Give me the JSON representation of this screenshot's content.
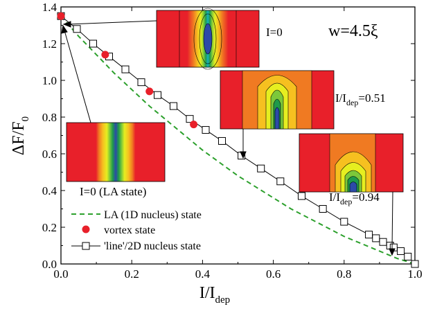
{
  "chart_data": {
    "type": "line",
    "xlabel_main": "I/I",
    "xlabel_sub": "dep",
    "ylabel_main": "ΔF/F",
    "ylabel_sub": "0",
    "xlim": [
      0.0,
      1.0
    ],
    "ylim": [
      0.0,
      1.4
    ],
    "xticks": [
      "0.0",
      "0.2",
      "0.4",
      "0.6",
      "0.8",
      "1.0"
    ],
    "yticks": [
      "0.0",
      "0.2",
      "0.4",
      "0.6",
      "0.8",
      "1.0",
      "1.2",
      "1.4"
    ],
    "annotation": "w=4.5ξ",
    "legend": [
      "LA (1D nucleus) state",
      "vortex state",
      "'line'/2D nucleus state"
    ],
    "series": [
      {
        "name": "LA (1D nucleus) state",
        "style": "dashed",
        "color": "#2ca02c",
        "x": [
          0.0,
          0.05,
          0.1,
          0.15,
          0.2,
          0.25,
          0.3,
          0.35,
          0.4,
          0.45,
          0.5,
          0.55,
          0.6,
          0.65,
          0.7,
          0.75,
          0.8,
          0.85,
          0.9,
          0.95,
          1.0
        ],
        "y": [
          1.35,
          1.24,
          1.14,
          1.04,
          0.95,
          0.86,
          0.78,
          0.7,
          0.62,
          0.55,
          0.48,
          0.42,
          0.36,
          0.3,
          0.25,
          0.2,
          0.15,
          0.11,
          0.07,
          0.03,
          0.0
        ]
      },
      {
        "name": "vortex state",
        "style": "markers",
        "color": "#e8202a",
        "x": [
          0.0,
          0.125,
          0.25,
          0.375
        ],
        "y": [
          1.35,
          1.14,
          0.94,
          0.76
        ]
      },
      {
        "name": "'line'/2D nucleus state",
        "style": "line-open-squares",
        "color": "#000000",
        "x": [
          0.0,
          0.045,
          0.091,
          0.136,
          0.182,
          0.227,
          0.273,
          0.318,
          0.364,
          0.409,
          0.455,
          0.51,
          0.565,
          0.62,
          0.68,
          0.74,
          0.8,
          0.87,
          0.89,
          0.91,
          0.93,
          0.94,
          0.96,
          0.98,
          1.0
        ],
        "y": [
          1.35,
          1.28,
          1.2,
          1.13,
          1.06,
          0.99,
          0.92,
          0.86,
          0.79,
          0.73,
          0.67,
          0.59,
          0.52,
          0.45,
          0.37,
          0.3,
          0.23,
          0.16,
          0.14,
          0.12,
          0.1,
          0.09,
          0.07,
          0.04,
          0.0
        ]
      }
    ],
    "insets": [
      {
        "id": "i0-vortex",
        "label": "I=0"
      },
      {
        "id": "i051",
        "label_main": "I/I",
        "label_sub": "dep",
        "label_value": "=0.51"
      },
      {
        "id": "i094",
        "label_main": "I/I",
        "label_sub": "dep",
        "label_value": "=0.94"
      },
      {
        "id": "i0-la",
        "label": "I=0 (LA state)"
      }
    ]
  }
}
